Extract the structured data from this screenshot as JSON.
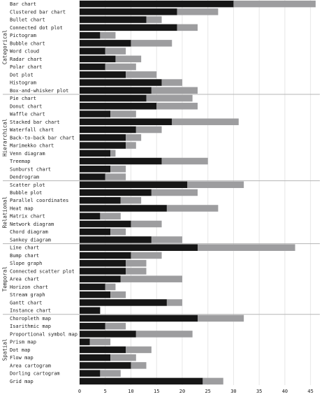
{
  "chart_data": {
    "type": "bar",
    "stacked": true,
    "xlim": [
      0,
      46
    ],
    "ticks": [
      0,
      5,
      10,
      15,
      20,
      25,
      30,
      35,
      40,
      45
    ],
    "grid": true,
    "colors": {
      "dark": "#161616",
      "light": "#9d9d9f",
      "grid": "#e6e6e6",
      "divider": "#b5b5b5"
    },
    "groups": [
      {
        "name": "Categorical",
        "rows": [
          {
            "label": "Bar chart",
            "dark": 30,
            "light": 16
          },
          {
            "label": "Clustered bar chart",
            "dark": 19,
            "light": 8
          },
          {
            "label": "Bullet chart",
            "dark": 13,
            "light": 3
          },
          {
            "label": "Connected dot plot",
            "dark": 19,
            "light": 4
          },
          {
            "label": "Pictogram",
            "dark": 4,
            "light": 3
          },
          {
            "label": "Bubble chart",
            "dark": 10,
            "light": 8
          },
          {
            "label": "Word cloud",
            "dark": 5,
            "light": 4
          },
          {
            "label": "Radar chart",
            "dark": 7,
            "light": 5
          },
          {
            "label": "Polar chart",
            "dark": 5,
            "light": 6
          },
          {
            "label": "Dot plot",
            "dark": 9,
            "light": 6
          },
          {
            "label": "Histogram",
            "dark": 16,
            "light": 4
          },
          {
            "label": "Box-and-whisker plot",
            "dark": 14,
            "light": 9
          }
        ]
      },
      {
        "name": "Hierarchical",
        "rows": [
          {
            "label": "Pie chart",
            "dark": 13,
            "light": 9
          },
          {
            "label": "Donut chart",
            "dark": 15,
            "light": 8
          },
          {
            "label": "Waffle chart",
            "dark": 6,
            "light": 5
          },
          {
            "label": "Stacked bar chart",
            "dark": 18,
            "light": 13
          },
          {
            "label": "Waterfall chart",
            "dark": 11,
            "light": 5
          },
          {
            "label": "Back-to-back bar chart",
            "dark": 9,
            "light": 3
          },
          {
            "label": "Marimekko chart",
            "dark": 9,
            "light": 2
          },
          {
            "label": "Venn diagram",
            "dark": 6,
            "light": 1
          },
          {
            "label": "Treemap",
            "dark": 16,
            "light": 9
          },
          {
            "label": "Sunburst chart",
            "dark": 6,
            "light": 3
          },
          {
            "label": "Dendrogram",
            "dark": 5,
            "light": 4
          }
        ]
      },
      {
        "name": "Relational",
        "rows": [
          {
            "label": "Scatter plot",
            "dark": 21,
            "light": 11
          },
          {
            "label": "Bubble plot",
            "dark": 14,
            "light": 9
          },
          {
            "label": "Parallel coordinates",
            "dark": 8,
            "light": 4
          },
          {
            "label": "Heat map",
            "dark": 17,
            "light": 10
          },
          {
            "label": "Matrix chart",
            "dark": 4,
            "light": 4
          },
          {
            "label": "Network diagram",
            "dark": 10,
            "light": 6
          },
          {
            "label": "Chord diagram",
            "dark": 6,
            "light": 3
          },
          {
            "label": "Sankey diagram",
            "dark": 14,
            "light": 6
          }
        ]
      },
      {
        "name": "Temporal",
        "rows": [
          {
            "label": "Line chart",
            "dark": 23,
            "light": 19
          },
          {
            "label": "Bump chart",
            "dark": 10,
            "light": 6
          },
          {
            "label": "Slope graph",
            "dark": 9,
            "light": 4
          },
          {
            "label": "Connected scatter plot",
            "dark": 9,
            "light": 4
          },
          {
            "label": "Area chart",
            "dark": 8,
            "light": 12
          },
          {
            "label": "Horizon chart",
            "dark": 5,
            "light": 2
          },
          {
            "label": "Stream graph",
            "dark": 6,
            "light": 3
          },
          {
            "label": "Gantt chart",
            "dark": 17,
            "light": 3
          },
          {
            "label": "Instance chart",
            "dark": 4,
            "light": 0
          }
        ]
      },
      {
        "name": "Spatial",
        "rows": [
          {
            "label": "Choropleth map",
            "dark": 23,
            "light": 9
          },
          {
            "label": "Isarithmic map",
            "dark": 5,
            "light": 4
          },
          {
            "label": "Proportional symbol map",
            "dark": 11,
            "light": 11
          },
          {
            "label": "Prism map",
            "dark": 2,
            "light": 4
          },
          {
            "label": "Dot map",
            "dark": 9,
            "light": 5
          },
          {
            "label": "Flow map",
            "dark": 6,
            "light": 5
          },
          {
            "label": "Area cartogram",
            "dark": 10,
            "light": 3
          },
          {
            "label": "Dorling cartogram",
            "dark": 4,
            "light": 4
          },
          {
            "label": "Grid map",
            "dark": 24,
            "light": 4
          }
        ]
      }
    ]
  }
}
